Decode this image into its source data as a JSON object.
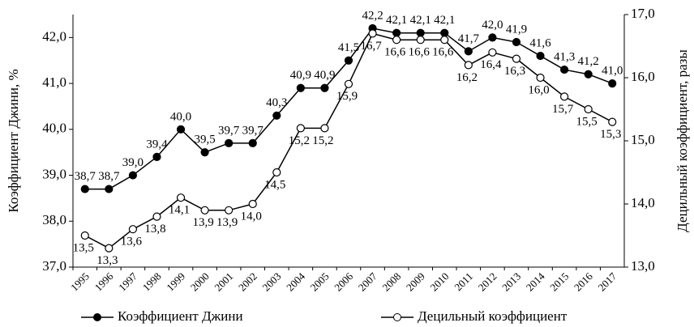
{
  "chart_data": {
    "type": "line",
    "categories": [
      "1995",
      "1996",
      "1997",
      "1998",
      "1999",
      "2000",
      "2001",
      "2002",
      "2003",
      "2004",
      "2005",
      "2006",
      "2007",
      "2008",
      "2009",
      "2010",
      "2011",
      "2012",
      "2013",
      "2014",
      "2015",
      "2016",
      "2017"
    ],
    "ylabel": "Коэффициент Джини, %",
    "y2label": "Децильный коэффициент, разы",
    "ylim": [
      37,
      42.5
    ],
    "yticks": [
      {
        "value": 37,
        "label": "37,0"
      },
      {
        "value": 38,
        "label": "38,0"
      },
      {
        "value": 39,
        "label": "39,0"
      },
      {
        "value": 40,
        "label": "40,0"
      },
      {
        "value": 41,
        "label": "41,0"
      },
      {
        "value": 42,
        "label": "42,0"
      }
    ],
    "y2lim": [
      13,
      17
    ],
    "y2ticks": [
      {
        "value": 13,
        "label": "13,0"
      },
      {
        "value": 14,
        "label": "14,0"
      },
      {
        "value": 15,
        "label": "15,0"
      },
      {
        "value": 16,
        "label": "16,0"
      },
      {
        "value": 17,
        "label": "17,0"
      }
    ],
    "legend": "bottom",
    "series": [
      {
        "name": "Коэффициент Джини",
        "color": "#000000",
        "marker": "filled",
        "axis": "y",
        "values": [
          38.7,
          38.7,
          39.0,
          39.4,
          40.0,
          39.5,
          39.7,
          39.7,
          40.3,
          40.9,
          40.9,
          41.5,
          42.2,
          42.1,
          42.1,
          42.1,
          41.7,
          42.0,
          41.9,
          41.6,
          41.3,
          41.2,
          41.0
        ],
        "value_labels": [
          "38,7",
          "38,7",
          "39,0",
          "39,4",
          "40,0",
          "39,5",
          "39,7",
          "39,7",
          "40,3",
          "40,9",
          "40,9",
          "41,5",
          "42,2",
          "42,1",
          "42,1",
          "42,1",
          "41,7",
          "42,0",
          "41,9",
          "41,6",
          "41,3",
          "41,2",
          "41,0"
        ]
      },
      {
        "name": "Децильный коэффициент",
        "color": "#000000",
        "marker": "open",
        "axis": "y2",
        "values": [
          13.5,
          13.3,
          13.6,
          13.8,
          14.1,
          13.9,
          13.9,
          14.0,
          14.5,
          15.2,
          15.2,
          15.9,
          16.7,
          16.6,
          16.6,
          16.6,
          16.2,
          16.4,
          16.3,
          16.0,
          15.7,
          15.5,
          15.3
        ],
        "value_labels": [
          "13,5",
          "13,3",
          "13,6",
          "13,8",
          "14,1",
          "13,9",
          "13,9",
          "14,0",
          "14,5",
          "15,2",
          "15,2",
          "15,9",
          "16,7",
          "16,6",
          "16,6",
          "16,6",
          "16,2",
          "16,4",
          "16,3",
          "16,0",
          "15,7",
          "15,5",
          "15,3"
        ]
      }
    ]
  }
}
